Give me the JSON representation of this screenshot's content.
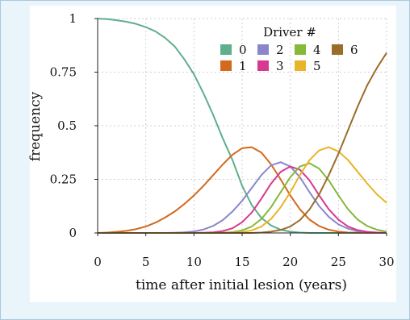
{
  "chart_data": {
    "type": "line",
    "title": "",
    "xlabel": "time after initial lesion (years)",
    "ylabel": "frequency",
    "xlim": [
      0,
      30
    ],
    "ylim": [
      0,
      1
    ],
    "xticks": [
      0,
      5,
      10,
      15,
      20,
      25,
      30
    ],
    "yticks": [
      0,
      0.25,
      0.5,
      0.75,
      1
    ],
    "ytick_labels": [
      "0",
      "0.25",
      "0.5",
      "0.75",
      "1"
    ],
    "grid": true,
    "legend": {
      "title": "Driver #",
      "placement": "top-right"
    },
    "x": [
      0,
      1,
      2,
      3,
      4,
      5,
      6,
      7,
      8,
      9,
      10,
      11,
      12,
      13,
      14,
      15,
      16,
      17,
      18,
      19,
      20,
      21,
      22,
      23,
      24,
      25,
      26,
      27,
      28,
      29,
      30
    ],
    "series": [
      {
        "name": "0",
        "color": "#5fae8c",
        "values": [
          1.0,
          0.997,
          0.992,
          0.985,
          0.975,
          0.96,
          0.94,
          0.91,
          0.87,
          0.81,
          0.74,
          0.65,
          0.55,
          0.44,
          0.34,
          0.22,
          0.13,
          0.07,
          0.035,
          0.015,
          0.006,
          0.002,
          0.0,
          0.0,
          0.0,
          0.0,
          0.0,
          0.0,
          0.0,
          0.0,
          0.0
        ]
      },
      {
        "name": "1",
        "color": "#d2691e",
        "values": [
          0.0,
          0.002,
          0.005,
          0.01,
          0.018,
          0.03,
          0.048,
          0.072,
          0.1,
          0.135,
          0.175,
          0.22,
          0.27,
          0.32,
          0.365,
          0.395,
          0.4,
          0.375,
          0.32,
          0.25,
          0.175,
          0.11,
          0.062,
          0.032,
          0.015,
          0.006,
          0.002,
          0.001,
          0.0,
          0.0,
          0.0
        ]
      },
      {
        "name": "2",
        "color": "#8b86cc",
        "values": [
          0.0,
          0.0,
          0.0,
          0.0,
          0.0,
          0.0,
          0.0,
          0.0,
          0.001,
          0.003,
          0.007,
          0.016,
          0.033,
          0.06,
          0.1,
          0.15,
          0.21,
          0.27,
          0.315,
          0.33,
          0.31,
          0.26,
          0.19,
          0.125,
          0.075,
          0.04,
          0.02,
          0.008,
          0.003,
          0.001,
          0.0
        ]
      },
      {
        "name": "3",
        "color": "#d63a8f",
        "values": [
          0.0,
          0.0,
          0.0,
          0.0,
          0.0,
          0.0,
          0.0,
          0.0,
          0.0,
          0.0,
          0.0,
          0.001,
          0.003,
          0.009,
          0.022,
          0.05,
          0.095,
          0.16,
          0.23,
          0.285,
          0.31,
          0.295,
          0.245,
          0.175,
          0.11,
          0.062,
          0.03,
          0.013,
          0.005,
          0.002,
          0.0
        ]
      },
      {
        "name": "4",
        "color": "#86b83a",
        "values": [
          0.0,
          0.0,
          0.0,
          0.0,
          0.0,
          0.0,
          0.0,
          0.0,
          0.0,
          0.0,
          0.0,
          0.0,
          0.0,
          0.001,
          0.004,
          0.012,
          0.03,
          0.065,
          0.12,
          0.19,
          0.26,
          0.31,
          0.325,
          0.3,
          0.245,
          0.175,
          0.11,
          0.062,
          0.032,
          0.015,
          0.006
        ]
      },
      {
        "name": "5",
        "color": "#e8b42a",
        "values": [
          0.0,
          0.0,
          0.0,
          0.0,
          0.0,
          0.0,
          0.0,
          0.0,
          0.0,
          0.0,
          0.0,
          0.0,
          0.0,
          0.0,
          0.001,
          0.004,
          0.012,
          0.03,
          0.065,
          0.12,
          0.19,
          0.27,
          0.34,
          0.385,
          0.4,
          0.38,
          0.34,
          0.285,
          0.23,
          0.18,
          0.14
        ]
      },
      {
        "name": "6",
        "color": "#9a6e2a",
        "values": [
          0.0,
          0.0,
          0.0,
          0.0,
          0.0,
          0.0,
          0.0,
          0.0,
          0.0,
          0.0,
          0.0,
          0.0,
          0.0,
          0.0,
          0.0,
          0.0,
          0.0,
          0.002,
          0.006,
          0.014,
          0.03,
          0.06,
          0.11,
          0.18,
          0.27,
          0.37,
          0.48,
          0.59,
          0.69,
          0.77,
          0.84
        ]
      }
    ]
  }
}
